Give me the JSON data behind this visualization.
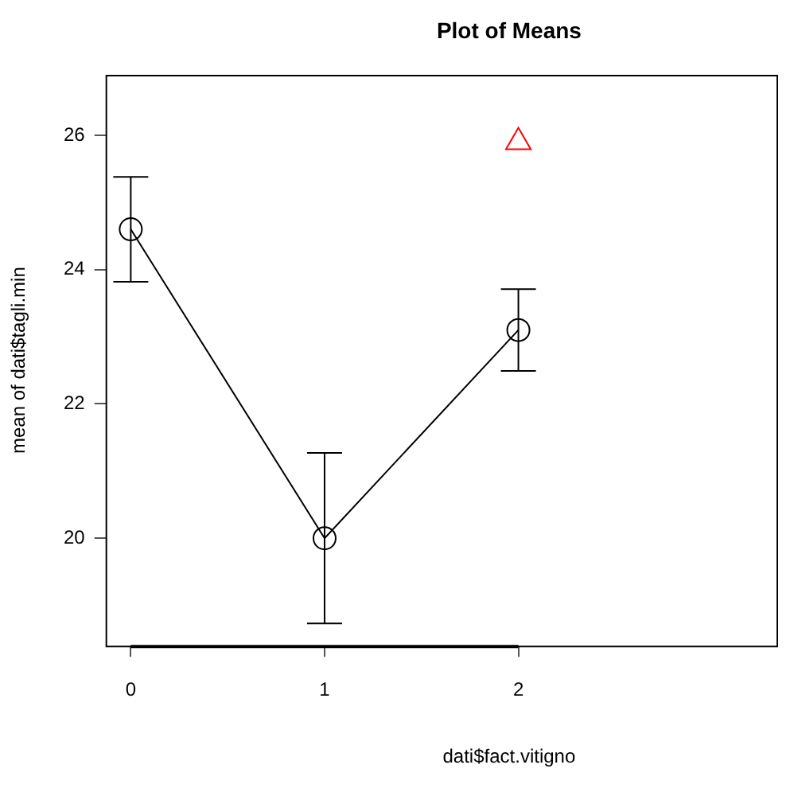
{
  "chart_data": {
    "type": "line",
    "title": "Plot of Means",
    "xlabel": "dati$fact.vitigno",
    "ylabel": "mean of dati$tagli.min",
    "x": [
      0,
      1,
      2
    ],
    "xlim": [
      -0.13,
      3.34
    ],
    "xticks": [
      0,
      1,
      2
    ],
    "ylim": [
      18.4,
      26.9
    ],
    "yticks": [
      20,
      22,
      24,
      26
    ],
    "series": [
      {
        "color": "#000000",
        "values": [
          24.6,
          20.0,
          23.1
        ],
        "errors": [
          0.78,
          1.27,
          0.61
        ],
        "marker": "circle"
      },
      {
        "type": "scatter",
        "x": [
          2
        ],
        "color": "#ff0000",
        "values": [
          25.9
        ],
        "marker": "triangle"
      }
    ],
    "grid": false,
    "legend": false
  }
}
